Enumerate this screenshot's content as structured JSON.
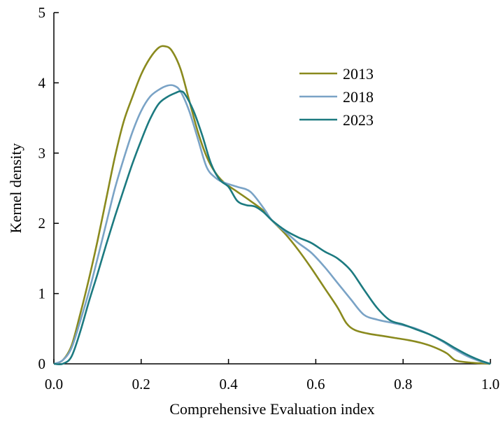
{
  "chart_data": {
    "type": "line",
    "title": "",
    "xlabel": "Comprehensive Evaluation index",
    "ylabel": "Kernel density",
    "xlim": [
      0.0,
      1.0
    ],
    "ylim": [
      0,
      5
    ],
    "xticks": [
      "0.0",
      "0.2",
      "0.4",
      "0.6",
      "0.8",
      "1.0"
    ],
    "yticks": [
      "0",
      "1",
      "2",
      "3",
      "4",
      "5"
    ],
    "grid": false,
    "legend_position": "top-right",
    "series": [
      {
        "name": "2013",
        "color": "#8a8a1e",
        "points": [
          [
            0.0,
            0.0
          ],
          [
            0.02,
            0.05
          ],
          [
            0.04,
            0.25
          ],
          [
            0.06,
            0.7
          ],
          [
            0.08,
            1.2
          ],
          [
            0.1,
            1.75
          ],
          [
            0.12,
            2.35
          ],
          [
            0.14,
            2.95
          ],
          [
            0.16,
            3.45
          ],
          [
            0.18,
            3.8
          ],
          [
            0.2,
            4.12
          ],
          [
            0.22,
            4.35
          ],
          [
            0.24,
            4.5
          ],
          [
            0.255,
            4.52
          ],
          [
            0.27,
            4.46
          ],
          [
            0.29,
            4.2
          ],
          [
            0.31,
            3.75
          ],
          [
            0.33,
            3.3
          ],
          [
            0.35,
            2.95
          ],
          [
            0.37,
            2.72
          ],
          [
            0.39,
            2.58
          ],
          [
            0.42,
            2.45
          ],
          [
            0.45,
            2.32
          ],
          [
            0.48,
            2.18
          ],
          [
            0.5,
            2.04
          ],
          [
            0.53,
            1.85
          ],
          [
            0.56,
            1.62
          ],
          [
            0.59,
            1.36
          ],
          [
            0.62,
            1.08
          ],
          [
            0.65,
            0.8
          ],
          [
            0.67,
            0.58
          ],
          [
            0.69,
            0.48
          ],
          [
            0.72,
            0.43
          ],
          [
            0.75,
            0.4
          ],
          [
            0.78,
            0.37
          ],
          [
            0.81,
            0.34
          ],
          [
            0.84,
            0.3
          ],
          [
            0.87,
            0.24
          ],
          [
            0.9,
            0.15
          ],
          [
            0.92,
            0.05
          ],
          [
            0.95,
            0.02
          ],
          [
            1.0,
            0.0
          ]
        ]
      },
      {
        "name": "2018",
        "color": "#7aa3c6",
        "points": [
          [
            0.0,
            0.0
          ],
          [
            0.02,
            0.05
          ],
          [
            0.04,
            0.22
          ],
          [
            0.06,
            0.6
          ],
          [
            0.08,
            1.02
          ],
          [
            0.1,
            1.5
          ],
          [
            0.12,
            2.0
          ],
          [
            0.14,
            2.5
          ],
          [
            0.16,
            2.92
          ],
          [
            0.18,
            3.3
          ],
          [
            0.2,
            3.6
          ],
          [
            0.22,
            3.8
          ],
          [
            0.24,
            3.9
          ],
          [
            0.26,
            3.96
          ],
          [
            0.275,
            3.96
          ],
          [
            0.29,
            3.88
          ],
          [
            0.31,
            3.6
          ],
          [
            0.33,
            3.2
          ],
          [
            0.35,
            2.8
          ],
          [
            0.37,
            2.65
          ],
          [
            0.39,
            2.58
          ],
          [
            0.42,
            2.52
          ],
          [
            0.45,
            2.45
          ],
          [
            0.48,
            2.22
          ],
          [
            0.5,
            2.04
          ],
          [
            0.53,
            1.88
          ],
          [
            0.56,
            1.72
          ],
          [
            0.59,
            1.58
          ],
          [
            0.62,
            1.38
          ],
          [
            0.65,
            1.15
          ],
          [
            0.68,
            0.92
          ],
          [
            0.71,
            0.7
          ],
          [
            0.74,
            0.63
          ],
          [
            0.77,
            0.59
          ],
          [
            0.8,
            0.55
          ],
          [
            0.83,
            0.5
          ],
          [
            0.86,
            0.42
          ],
          [
            0.89,
            0.32
          ],
          [
            0.92,
            0.2
          ],
          [
            0.95,
            0.1
          ],
          [
            0.98,
            0.03
          ],
          [
            1.0,
            0.0
          ]
        ]
      },
      {
        "name": "2023",
        "color": "#1c7a80",
        "points": [
          [
            0.0,
            0.0
          ],
          [
            0.02,
            0.0
          ],
          [
            0.04,
            0.1
          ],
          [
            0.06,
            0.45
          ],
          [
            0.08,
            0.88
          ],
          [
            0.1,
            1.28
          ],
          [
            0.12,
            1.7
          ],
          [
            0.14,
            2.1
          ],
          [
            0.16,
            2.48
          ],
          [
            0.18,
            2.85
          ],
          [
            0.2,
            3.18
          ],
          [
            0.22,
            3.48
          ],
          [
            0.24,
            3.7
          ],
          [
            0.26,
            3.8
          ],
          [
            0.28,
            3.86
          ],
          [
            0.29,
            3.88
          ],
          [
            0.3,
            3.84
          ],
          [
            0.32,
            3.6
          ],
          [
            0.34,
            3.25
          ],
          [
            0.36,
            2.85
          ],
          [
            0.38,
            2.62
          ],
          [
            0.4,
            2.52
          ],
          [
            0.42,
            2.32
          ],
          [
            0.44,
            2.26
          ],
          [
            0.46,
            2.24
          ],
          [
            0.48,
            2.16
          ],
          [
            0.5,
            2.04
          ],
          [
            0.53,
            1.9
          ],
          [
            0.56,
            1.8
          ],
          [
            0.59,
            1.72
          ],
          [
            0.62,
            1.6
          ],
          [
            0.65,
            1.5
          ],
          [
            0.68,
            1.33
          ],
          [
            0.71,
            1.06
          ],
          [
            0.74,
            0.8
          ],
          [
            0.77,
            0.62
          ],
          [
            0.8,
            0.56
          ],
          [
            0.83,
            0.49
          ],
          [
            0.86,
            0.42
          ],
          [
            0.89,
            0.33
          ],
          [
            0.92,
            0.22
          ],
          [
            0.95,
            0.12
          ],
          [
            0.98,
            0.04
          ],
          [
            1.0,
            0.0
          ]
        ]
      }
    ]
  }
}
